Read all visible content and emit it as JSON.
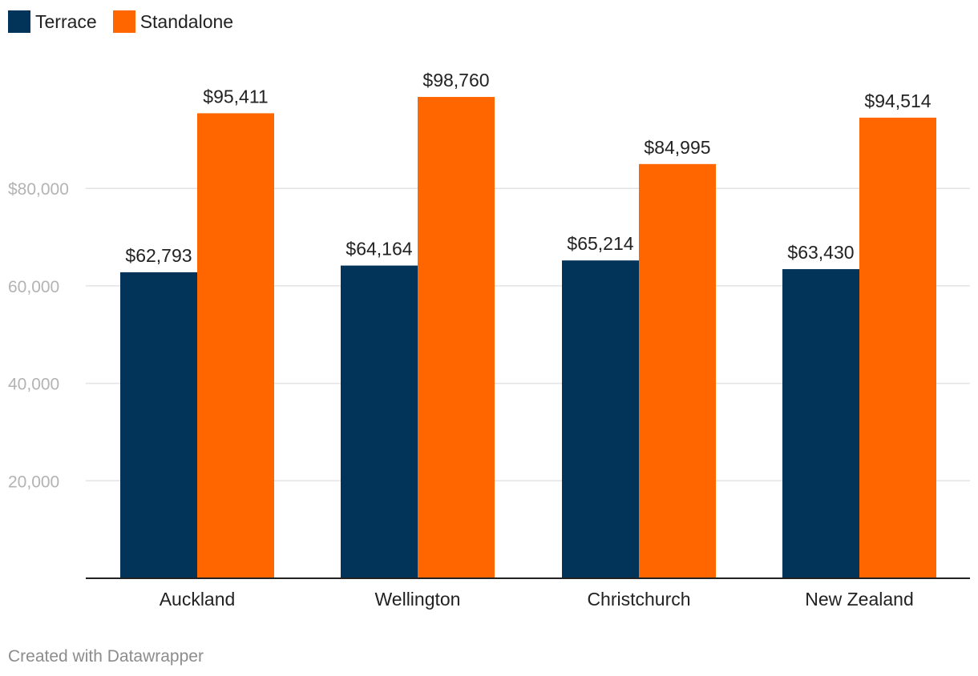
{
  "legend": [
    {
      "name": "Terrace",
      "color": "#023459"
    },
    {
      "name": "Standalone",
      "color": "#ff6600"
    }
  ],
  "footer": "Created with Datawrapper",
  "chart_data": {
    "type": "bar",
    "title": "",
    "xlabel": "",
    "ylabel": "",
    "categories": [
      "Auckland",
      "Wellington",
      "Christchurch",
      "New Zealand"
    ],
    "series": [
      {
        "name": "Terrace",
        "color": "#023459",
        "values": [
          62793,
          64164,
          65214,
          63430
        ],
        "labels": [
          "$62,793",
          "$64,164",
          "$65,214",
          "$63,430"
        ]
      },
      {
        "name": "Standalone",
        "color": "#ff6600",
        "values": [
          95411,
          98760,
          84995,
          94514
        ],
        "labels": [
          "$95,411",
          "$98,760",
          "$84,995",
          "$94,514"
        ]
      }
    ],
    "yticks": [
      20000,
      40000,
      60000,
      80000
    ],
    "ytick_labels": [
      "20,000",
      "40,000",
      "60,000",
      "80,000"
    ],
    "ylim": [
      0,
      100000
    ],
    "grid": true,
    "legend_position": "top-left"
  }
}
